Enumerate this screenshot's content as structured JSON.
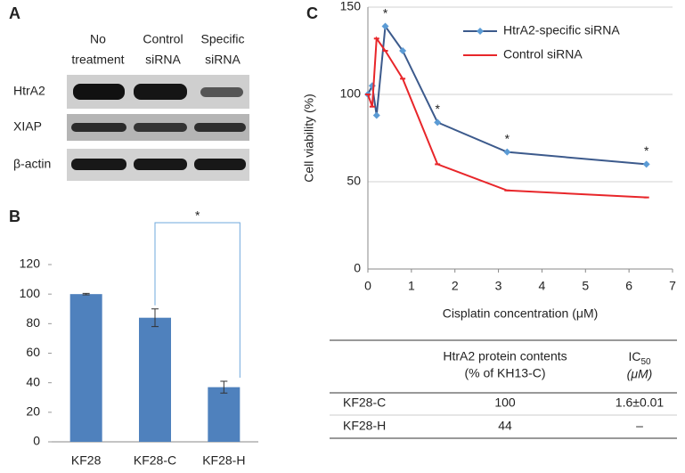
{
  "panels": {
    "a": "A",
    "b": "B",
    "c": "C"
  },
  "blot": {
    "columns": [
      [
        "No",
        "treatment"
      ],
      [
        "Control",
        "siRNA"
      ],
      [
        "Specific",
        "siRNA"
      ]
    ],
    "rows": [
      "HtrA2",
      "XIAP",
      "β-actin"
    ]
  },
  "chart_data": [
    {
      "type": "bar",
      "categories": [
        "KF28",
        "KF28-C",
        "KF28-H"
      ],
      "values": [
        100,
        84,
        37
      ],
      "errors": [
        0.5,
        6,
        4
      ],
      "color": "#4f81bd",
      "ylim": [
        0,
        120
      ],
      "yticks": [
        0,
        20,
        40,
        60,
        80,
        100,
        120
      ],
      "significance": "*"
    },
    {
      "type": "line",
      "x_label": "Cisplatin concentration (μM)",
      "y_label": "Cell viability (%)",
      "x": [
        0,
        0.1,
        0.2,
        0.4,
        0.8,
        1.6,
        3.2,
        6.4
      ],
      "series": [
        {
          "name": "HtrA2-specific siRNA",
          "color": "#3c5a8c",
          "marker_color": "#5b9bd5",
          "values": [
            100,
            105,
            88,
            139,
            125,
            84,
            67,
            60
          ]
        },
        {
          "name": "Control siRNA",
          "color": "#e8262a",
          "marker_color": "#e8262a",
          "values": [
            100,
            93,
            132,
            125,
            109,
            60,
            45,
            41
          ]
        }
      ],
      "xlim": [
        0,
        7
      ],
      "xticks": [
        0,
        1,
        2,
        3,
        4,
        5,
        6,
        7
      ],
      "ylim": [
        0,
        150
      ],
      "yticks": [
        0,
        50,
        100,
        150
      ],
      "grid": true,
      "legend": "upper right",
      "annotations": [
        {
          "text": "*",
          "x": 0.4
        },
        {
          "text": "*",
          "x": 1.6
        },
        {
          "text": "*",
          "x": 3.2
        },
        {
          "text": "*",
          "x": 6.4
        }
      ]
    }
  ],
  "table": {
    "header": [
      [
        "HtrA2 protein contents",
        "(% of KH13-C)"
      ],
      {
        "main": "IC",
        "sub": "50",
        "unit": "(μM)"
      }
    ],
    "rows": [
      [
        "KF28-C",
        "100",
        "1.6±0.01"
      ],
      [
        "KF28-H",
        "44",
        "–"
      ]
    ]
  }
}
